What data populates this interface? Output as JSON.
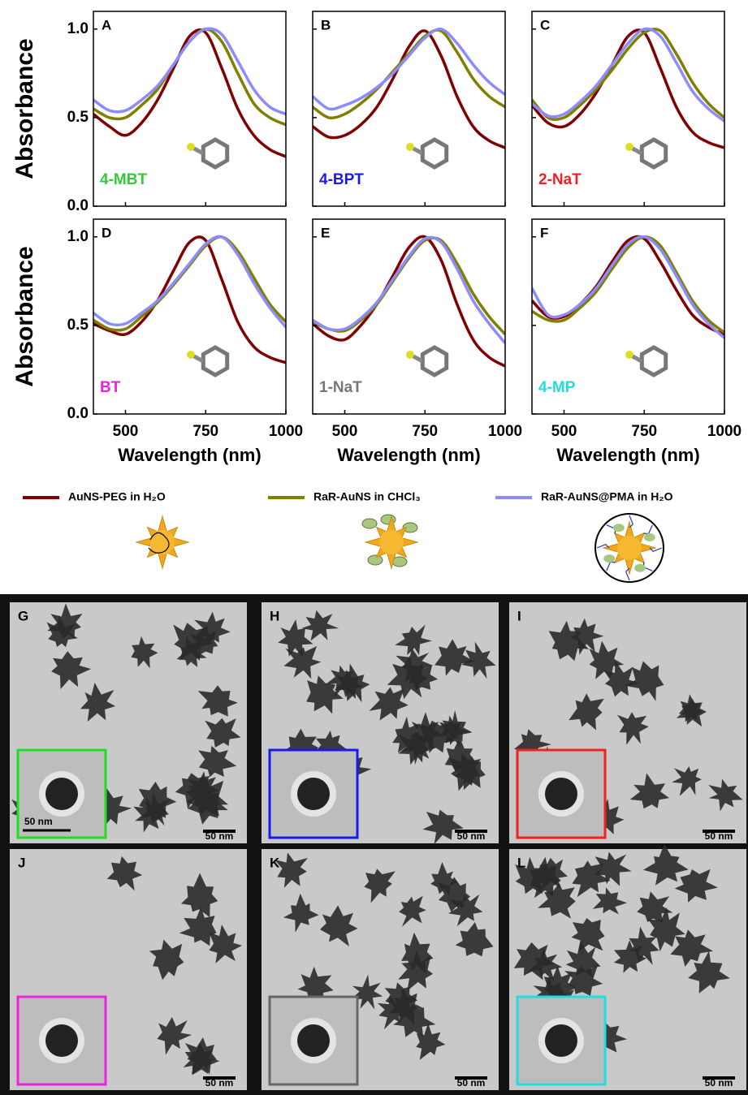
{
  "chart_data": [
    {
      "type": "line",
      "panel": "A",
      "molecule": "4-MBT",
      "molecule_color": "#33cc33",
      "ylabel": "Absorbance",
      "x": [
        400,
        450,
        500,
        550,
        600,
        650,
        700,
        750,
        800,
        850,
        900,
        950,
        1000
      ],
      "xlim": [
        400,
        1000
      ],
      "xticks": [
        500,
        750,
        1000
      ],
      "ylim": [
        0,
        1.1
      ],
      "yticks": [
        {
          "value": 0,
          "label": "0.0"
        },
        0.5,
        {
          "value": 1,
          "label": "1.0"
        }
      ],
      "series": [
        {
          "color": "#800000",
          "values": [
            0.52,
            0.45,
            0.4,
            0.47,
            0.6,
            0.78,
            0.96,
            0.98,
            0.78,
            0.55,
            0.4,
            0.32,
            0.28
          ]
        },
        {
          "color": "#808000",
          "values": [
            0.55,
            0.5,
            0.5,
            0.57,
            0.66,
            0.8,
            0.93,
            1.0,
            0.93,
            0.75,
            0.58,
            0.5,
            0.46
          ]
        },
        {
          "color": "#8c8cff",
          "values": [
            0.6,
            0.54,
            0.54,
            0.6,
            0.68,
            0.8,
            0.93,
            1.0,
            0.97,
            0.82,
            0.66,
            0.56,
            0.52
          ]
        }
      ]
    },
    {
      "type": "line",
      "panel": "B",
      "molecule": "4-BPT",
      "molecule_color": "#1a1aee",
      "x": [
        400,
        450,
        500,
        550,
        600,
        650,
        700,
        750,
        800,
        850,
        900,
        950,
        1000
      ],
      "xlim": [
        400,
        1000
      ],
      "xticks": [
        500,
        750,
        1000
      ],
      "ylim": [
        0,
        1.1
      ],
      "yticks": [
        0,
        0.5,
        1
      ],
      "series": [
        {
          "color": "#800000",
          "values": [
            0.45,
            0.39,
            0.4,
            0.46,
            0.56,
            0.72,
            0.9,
            0.99,
            0.85,
            0.62,
            0.45,
            0.37,
            0.33
          ]
        },
        {
          "color": "#808000",
          "values": [
            0.56,
            0.5,
            0.52,
            0.58,
            0.66,
            0.76,
            0.86,
            0.96,
            0.99,
            0.87,
            0.72,
            0.62,
            0.56
          ]
        },
        {
          "color": "#8c8cff",
          "values": [
            0.62,
            0.55,
            0.57,
            0.61,
            0.67,
            0.75,
            0.85,
            0.95,
            1.0,
            0.92,
            0.8,
            0.7,
            0.63
          ]
        }
      ]
    },
    {
      "type": "line",
      "panel": "C",
      "molecule": "2-NaT",
      "molecule_color": "#ee2222",
      "x": [
        400,
        450,
        500,
        550,
        600,
        650,
        700,
        750,
        800,
        850,
        900,
        950,
        1000
      ],
      "xlim": [
        400,
        1000
      ],
      "xticks": [
        500,
        750,
        1000
      ],
      "ylim": [
        0,
        1.1
      ],
      "yticks": [
        0,
        0.5,
        1
      ],
      "series": [
        {
          "color": "#800000",
          "values": [
            0.57,
            0.47,
            0.45,
            0.52,
            0.64,
            0.8,
            0.96,
            0.98,
            0.78,
            0.56,
            0.42,
            0.36,
            0.33
          ]
        },
        {
          "color": "#808000",
          "values": [
            0.6,
            0.5,
            0.5,
            0.57,
            0.66,
            0.77,
            0.89,
            0.98,
            0.99,
            0.86,
            0.7,
            0.58,
            0.5
          ]
        },
        {
          "color": "#8c8cff",
          "values": [
            0.58,
            0.51,
            0.52,
            0.59,
            0.68,
            0.8,
            0.92,
            1.0,
            0.96,
            0.81,
            0.65,
            0.55,
            0.48
          ]
        }
      ]
    },
    {
      "type": "line",
      "panel": "D",
      "molecule": "BT",
      "molecule_color": "#ee22dd",
      "ylabel": "Absorbance",
      "xlabel": "Wavelength (nm)",
      "x": [
        400,
        450,
        500,
        550,
        600,
        650,
        700,
        750,
        800,
        850,
        900,
        950,
        1000
      ],
      "xlim": [
        400,
        1000
      ],
      "xticks": [
        500,
        750,
        1000
      ],
      "ylim": [
        0,
        1.1
      ],
      "yticks": [
        {
          "value": 0,
          "label": "0.0"
        },
        0.5,
        {
          "value": 1,
          "label": "1.0"
        }
      ],
      "series": [
        {
          "color": "#800000",
          "values": [
            0.51,
            0.47,
            0.45,
            0.52,
            0.64,
            0.81,
            0.97,
            0.98,
            0.76,
            0.52,
            0.38,
            0.32,
            0.29
          ]
        },
        {
          "color": "#808000",
          "values": [
            0.53,
            0.48,
            0.48,
            0.55,
            0.63,
            0.73,
            0.84,
            0.95,
            1.0,
            0.92,
            0.77,
            0.62,
            0.52
          ]
        },
        {
          "color": "#8c8cff",
          "values": [
            0.57,
            0.51,
            0.51,
            0.57,
            0.64,
            0.74,
            0.85,
            0.96,
            1.0,
            0.9,
            0.74,
            0.6,
            0.49
          ]
        }
      ]
    },
    {
      "type": "line",
      "panel": "E",
      "molecule": "1-NaT",
      "molecule_color": "#777777",
      "xlabel": "Wavelength (nm)",
      "x": [
        400,
        450,
        500,
        550,
        600,
        650,
        700,
        750,
        800,
        850,
        900,
        950,
        1000
      ],
      "xlim": [
        400,
        1000
      ],
      "xticks": [
        500,
        750,
        1000
      ],
      "ylim": [
        0,
        1.1
      ],
      "yticks": [
        0,
        0.5,
        1
      ],
      "series": [
        {
          "color": "#800000",
          "values": [
            0.51,
            0.44,
            0.42,
            0.5,
            0.62,
            0.78,
            0.94,
            1.0,
            0.87,
            0.62,
            0.42,
            0.32,
            0.27
          ]
        },
        {
          "color": "#808000",
          "values": [
            0.52,
            0.48,
            0.47,
            0.53,
            0.62,
            0.75,
            0.88,
            0.98,
            0.98,
            0.85,
            0.68,
            0.55,
            0.45
          ]
        },
        {
          "color": "#8c8cff",
          "values": [
            0.53,
            0.48,
            0.48,
            0.54,
            0.63,
            0.76,
            0.89,
            0.99,
            0.97,
            0.82,
            0.64,
            0.51,
            0.4
          ]
        }
      ]
    },
    {
      "type": "line",
      "panel": "F",
      "molecule": "4-MP",
      "molecule_color": "#22dddd",
      "xlabel": "Wavelength (nm)",
      "x": [
        400,
        450,
        500,
        550,
        600,
        650,
        700,
        750,
        800,
        850,
        900,
        950,
        1000
      ],
      "xlim": [
        400,
        1000
      ],
      "xticks": [
        500,
        750,
        1000
      ],
      "ylim": [
        0,
        1.1
      ],
      "yticks": [
        0,
        0.5,
        1
      ],
      "series": [
        {
          "color": "#800000",
          "values": [
            0.64,
            0.55,
            0.55,
            0.62,
            0.72,
            0.86,
            0.98,
            0.99,
            0.86,
            0.7,
            0.56,
            0.49,
            0.45
          ]
        },
        {
          "color": "#808000",
          "values": [
            0.58,
            0.53,
            0.53,
            0.6,
            0.69,
            0.82,
            0.94,
            1.0,
            0.95,
            0.8,
            0.64,
            0.53,
            0.46
          ]
        },
        {
          "color": "#8c8cff",
          "values": [
            0.71,
            0.56,
            0.56,
            0.62,
            0.71,
            0.84,
            0.96,
            1.0,
            0.93,
            0.78,
            0.62,
            0.51,
            0.43
          ]
        }
      ]
    }
  ],
  "legend": [
    {
      "name": "AuNS-PEG in H₂O",
      "color": "#800000"
    },
    {
      "name": "RaR-AuNS in CHCl₃",
      "color": "#808000"
    },
    {
      "name": "RaR-AuNS@PMA in H₂O",
      "color": "#8c8cff"
    }
  ],
  "tem_panels": [
    {
      "label": "G",
      "scale": "50 nm",
      "inset_color": "#22dd22",
      "inset_scale": "50 nm"
    },
    {
      "label": "H",
      "scale": "50 nm",
      "inset_color": "#1a1aee"
    },
    {
      "label": "I",
      "scale": "50 nm",
      "inset_color": "#ee2222"
    },
    {
      "label": "J",
      "scale": "50 nm",
      "inset_color": "#ee22dd"
    },
    {
      "label": "K",
      "scale": "50 nm",
      "inset_color": "#666666"
    },
    {
      "label": "L",
      "scale": "50 nm",
      "inset_color": "#22dddd"
    }
  ]
}
